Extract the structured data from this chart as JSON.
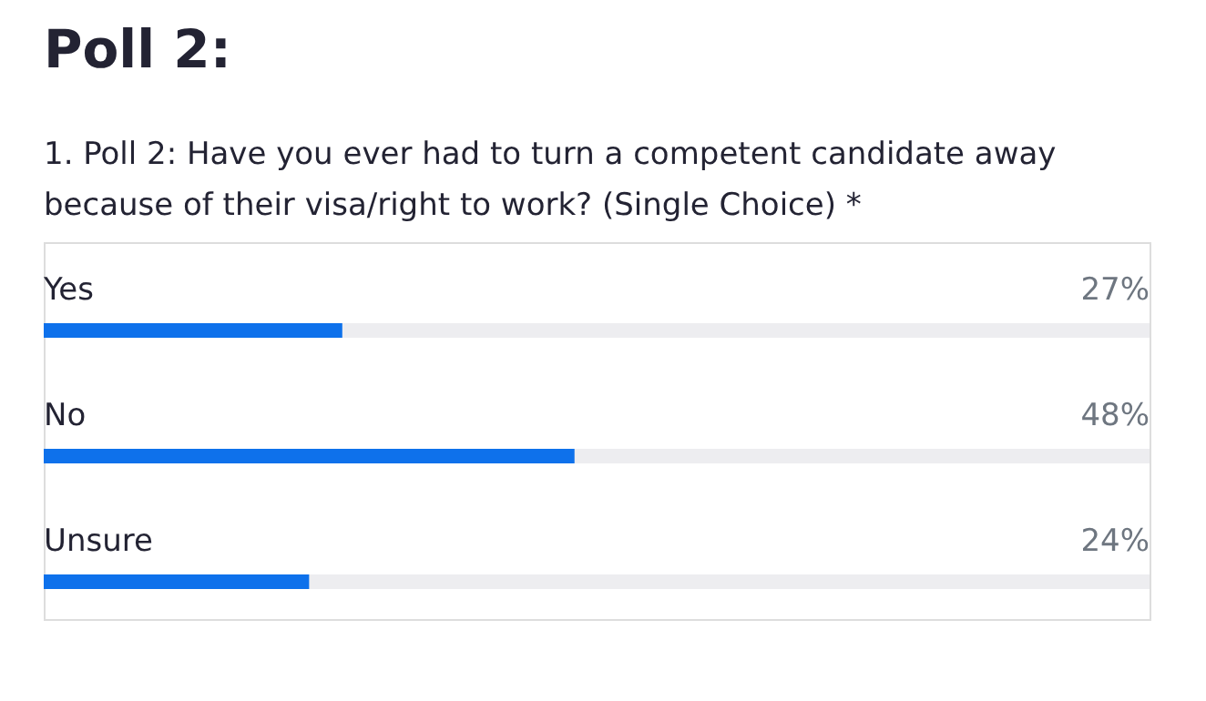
{
  "chart_data": {
    "type": "bar",
    "orientation": "horizontal",
    "title": "Poll 2:",
    "subtitle": "1. Poll 2: Have you ever had to turn a competent candidate away because of their visa/right to work? (Single Choice) *",
    "categories": [
      "Yes",
      "No",
      "Unsure"
    ],
    "values": [
      27,
      48,
      24
    ],
    "value_labels": [
      "27%",
      "48%",
      "24%"
    ],
    "color": "#0e71eb",
    "xlim": [
      0,
      100
    ],
    "tick_labels": false
  }
}
